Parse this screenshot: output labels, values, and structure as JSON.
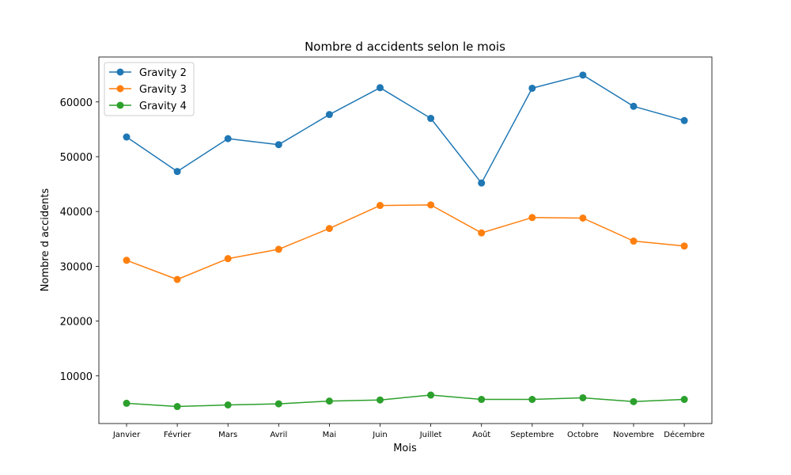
{
  "chart_data": {
    "type": "line",
    "title": "Nombre d accidents selon le mois",
    "xlabel": "Mois",
    "ylabel": "Nombre d accidents",
    "categories": [
      "Janvier",
      "Février",
      "Mars",
      "Avril",
      "Mai",
      "Juin",
      "Juillet",
      "Août",
      "Septembre",
      "Octobre",
      "Novembre",
      "Décembre"
    ],
    "yticks": [
      "10000",
      "20000",
      "30000",
      "40000",
      "50000",
      "60000"
    ],
    "ylim": [
      1300,
      68200
    ],
    "grid": false,
    "legend_position": "upper-left",
    "series": [
      {
        "name": "Gravity 2",
        "color": "#1f77b4",
        "values": [
          53600,
          47300,
          53300,
          52200,
          57700,
          62600,
          57000,
          45200,
          62500,
          64900,
          59200,
          56600
        ]
      },
      {
        "name": "Gravity 3",
        "color": "#ff7f0e",
        "values": [
          31100,
          27600,
          31400,
          33100,
          36900,
          41100,
          41200,
          36100,
          38900,
          38800,
          34600,
          33700
        ]
      },
      {
        "name": "Gravity 4",
        "color": "#2ca02c",
        "values": [
          5000,
          4400,
          4700,
          4900,
          5400,
          5600,
          6500,
          5700,
          5700,
          6000,
          5300,
          5700
        ]
      }
    ]
  }
}
